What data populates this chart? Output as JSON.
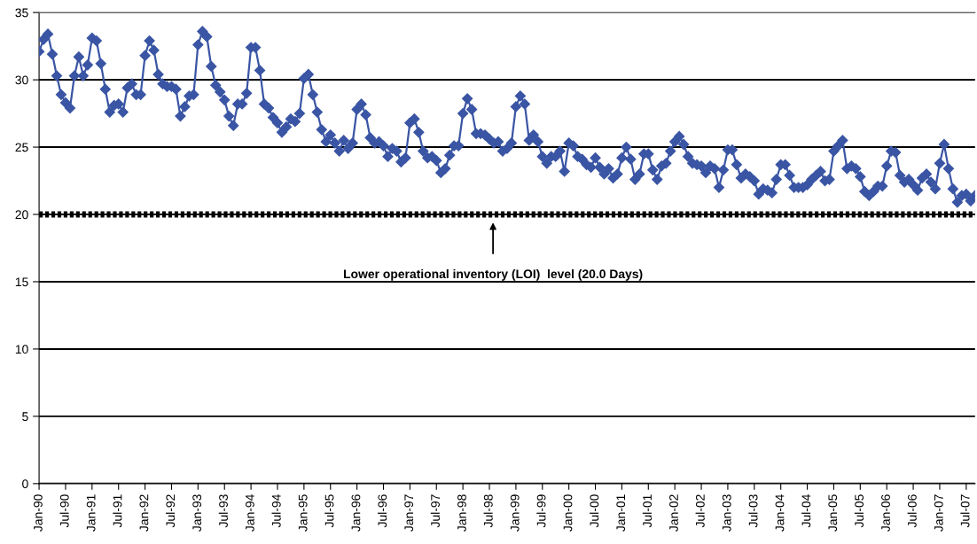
{
  "chart_data": {
    "type": "line",
    "categories": [
      "Jan-90",
      null,
      null,
      null,
      null,
      null,
      "Jul-90",
      null,
      null,
      null,
      null,
      null,
      "Jan-91",
      null,
      null,
      null,
      null,
      null,
      "Jul-91",
      null,
      null,
      null,
      null,
      null,
      "Jan-92",
      null,
      null,
      null,
      null,
      null,
      "Jul-92",
      null,
      null,
      null,
      null,
      null,
      "Jan-93",
      null,
      null,
      null,
      null,
      null,
      "Jul-93",
      null,
      null,
      null,
      null,
      null,
      "Jan-94",
      null,
      null,
      null,
      null,
      null,
      "Jul-94",
      null,
      null,
      null,
      null,
      null,
      "Jan-95",
      null,
      null,
      null,
      null,
      null,
      "Jul-95",
      null,
      null,
      null,
      null,
      null,
      "Jan-96",
      null,
      null,
      null,
      null,
      null,
      "Jul-96",
      null,
      null,
      null,
      null,
      null,
      "Jan-97",
      null,
      null,
      null,
      null,
      null,
      "Jul-97",
      null,
      null,
      null,
      null,
      null,
      "Jan-98",
      null,
      null,
      null,
      null,
      null,
      "Jul-98",
      null,
      null,
      null,
      null,
      null,
      "Jan-99",
      null,
      null,
      null,
      null,
      null,
      "Jul-99",
      null,
      null,
      null,
      null,
      null,
      "Jan-00",
      null,
      null,
      null,
      null,
      null,
      "Jul-00",
      null,
      null,
      null,
      null,
      null,
      "Jan-01",
      null,
      null,
      null,
      null,
      null,
      "Jul-01",
      null,
      null,
      null,
      null,
      null,
      "Jan-02",
      null,
      null,
      null,
      null,
      null,
      "Jul-02",
      null,
      null,
      null,
      null,
      null,
      "Jan-03",
      null,
      null,
      null,
      null,
      null,
      "Jul-03",
      null,
      null,
      null,
      null,
      null,
      "Jan-04",
      null,
      null,
      null,
      null,
      null,
      "Jul-04",
      null,
      null,
      null,
      null,
      null,
      "Jan-05",
      null,
      null,
      null,
      null,
      null,
      "Jul-05",
      null,
      null,
      null,
      null,
      null,
      "Jan-06",
      null,
      null,
      null,
      null,
      null,
      "Jul-06",
      null,
      null,
      null,
      null,
      null,
      "Jan-07",
      null,
      null,
      null,
      null,
      null,
      "Jul-07",
      null,
      null
    ],
    "series": [
      {
        "color": "#3a55a4",
        "values": [
          32.1,
          33.0,
          33.4,
          31.9,
          30.3,
          28.9,
          28.3,
          27.9,
          30.3,
          31.7,
          30.3,
          31.1,
          33.1,
          32.9,
          31.2,
          29.3,
          27.6,
          28.1,
          28.2,
          27.6,
          29.4,
          29.7,
          28.9,
          28.9,
          31.8,
          32.9,
          32.2,
          30.4,
          29.7,
          29.5,
          29.5,
          29.3,
          27.3,
          28.0,
          28.8,
          28.9,
          32.6,
          33.6,
          33.2,
          31.0,
          29.6,
          29.1,
          28.5,
          27.3,
          26.6,
          28.2,
          28.2,
          29.0,
          32.4,
          32.4,
          30.7,
          28.2,
          27.9,
          27.2,
          26.8,
          26.1,
          26.5,
          27.1,
          26.9,
          27.5,
          30.1,
          30.4,
          28.9,
          27.6,
          26.3,
          25.4,
          25.9,
          25.3,
          24.7,
          25.5,
          24.9,
          25.3,
          27.8,
          28.2,
          27.4,
          25.7,
          25.3,
          25.4,
          25.1,
          24.3,
          24.9,
          24.7,
          23.9,
          24.2,
          26.8,
          27.1,
          26.1,
          24.7,
          24.2,
          24.3,
          24.0,
          23.1,
          23.4,
          24.4,
          25.1,
          25.1,
          27.5,
          28.6,
          27.8,
          26.0,
          26.0,
          25.9,
          25.6,
          25.3,
          25.4,
          24.7,
          24.9,
          25.3,
          28.0,
          28.8,
          28.2,
          25.5,
          25.9,
          25.4,
          24.3,
          23.8,
          24.3,
          24.3,
          24.7,
          23.2,
          25.3,
          25.1,
          24.3,
          24.1,
          23.7,
          23.5,
          24.2,
          23.5,
          23.0,
          23.4,
          22.7,
          23.0,
          24.2,
          25.0,
          24.1,
          22.6,
          23.0,
          24.5,
          24.5,
          23.3,
          22.6,
          23.6,
          23.8,
          24.7,
          25.4,
          25.8,
          25.2,
          24.3,
          23.8,
          23.7,
          23.6,
          23.1,
          23.6,
          23.4,
          22.0,
          23.3,
          24.8,
          24.8,
          23.7,
          22.7,
          23.0,
          22.8,
          22.5,
          21.5,
          21.9,
          21.8,
          21.6,
          22.6,
          23.7,
          23.7,
          22.9,
          22.0,
          22.0,
          22.0,
          22.2,
          22.6,
          22.9,
          23.2,
          22.5,
          22.6,
          24.7,
          25.1,
          25.5,
          23.4,
          23.6,
          23.4,
          22.8,
          21.7,
          21.4,
          21.7,
          22.1,
          22.1,
          23.6,
          24.7,
          24.6,
          22.9,
          22.4,
          22.6,
          22.2,
          21.8,
          22.7,
          23.0,
          22.4,
          21.9,
          23.8,
          25.2,
          23.4,
          21.9,
          20.9,
          21.4,
          21.5,
          21.0,
          21.4
        ]
      }
    ],
    "ylim": [
      0,
      35
    ],
    "yticks": [
      0,
      5,
      10,
      15,
      20,
      25,
      30,
      35
    ],
    "grid": "y",
    "marker": "diamond",
    "line_style": "solid",
    "ref_lines": [
      {
        "axis": "y",
        "value": 20,
        "label": "Lower operational inventory (LOI)  level (20.0 Days)",
        "color": "#000000",
        "line_style": "dotted"
      }
    ]
  }
}
